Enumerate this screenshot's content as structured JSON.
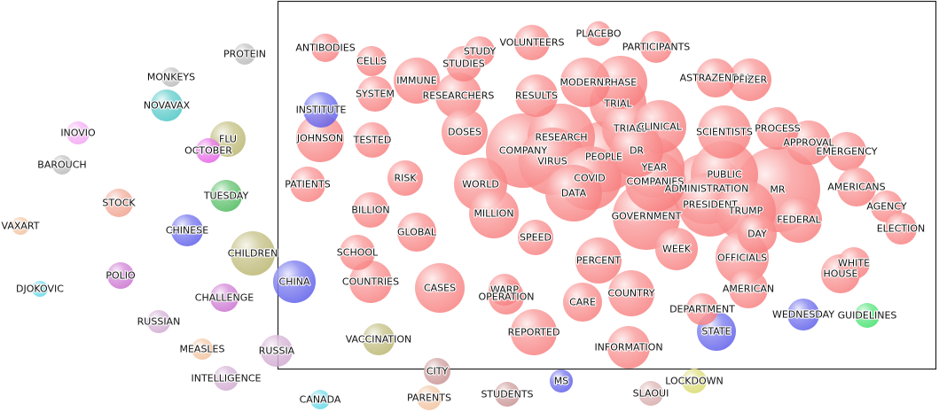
{
  "colors": {
    "red": "#f87f7f",
    "blue": "#5b5bea",
    "teal": "#49c4c4",
    "olive": "#b9b56e",
    "green": "#49b859",
    "bright_green": "#3fe06a",
    "magenta": "#e45fe4",
    "violet": "#c96fd0",
    "pink": "#f3a3f3",
    "gray": "#b8b8b8",
    "salmon": "#f0a08c",
    "peach": "#f2c19b",
    "rose": "#d7a8a8",
    "lilac": "#cfa7cf",
    "yellow": "#d9d96a",
    "brown": "#c89090",
    "cyan": "#5fd8e8",
    "frame": "#222222"
  },
  "nodes": [
    {
      "label": "PLACEBO",
      "color": "red",
      "radius": 14
    },
    {
      "label": "PARTICIPANTS",
      "color": "red",
      "radius": 18
    },
    {
      "label": "VOLUNTEERS",
      "color": "red",
      "radius": 20
    },
    {
      "label": "STUDY",
      "color": "red",
      "radius": 17
    },
    {
      "label": "STUDIES",
      "color": "red",
      "radius": 20
    },
    {
      "label": "ANTIBODIES",
      "color": "red",
      "radius": 16
    },
    {
      "label": "CELLS",
      "color": "red",
      "radius": 17
    },
    {
      "label": "IMMUNE",
      "color": "red",
      "radius": 26
    },
    {
      "label": "RESEARCHERS",
      "color": "red",
      "radius": 26
    },
    {
      "label": "SYSTEM",
      "color": "red",
      "radius": 20
    },
    {
      "label": "RESULTS",
      "color": "red",
      "radius": 24
    },
    {
      "label": "MODERNA",
      "color": "red",
      "radius": 28
    },
    {
      "label": "PHASE",
      "color": "red",
      "radius": 30
    },
    {
      "label": "ASTRAZENECA",
      "color": "red",
      "radius": 22
    },
    {
      "label": "PFIZER",
      "color": "red",
      "radius": 24
    },
    {
      "label": "INSTITUTE",
      "color": "blue",
      "radius": 20
    },
    {
      "label": "TRIAL",
      "color": "red",
      "radius": 32
    },
    {
      "label": "JOHNSON",
      "color": "red",
      "radius": 27
    },
    {
      "label": "TESTED",
      "color": "red",
      "radius": 20
    },
    {
      "label": "DOSES",
      "color": "red",
      "radius": 26
    },
    {
      "label": "TRIALS",
      "color": "red",
      "radius": 32
    },
    {
      "label": "CLINICAL",
      "color": "red",
      "radius": 30
    },
    {
      "label": "SCIENTISTS",
      "color": "red",
      "radius": 30
    },
    {
      "label": "PROCESS",
      "color": "red",
      "radius": 24
    },
    {
      "label": "RESEARCH",
      "color": "red",
      "radius": 38
    },
    {
      "label": "COMPANY",
      "color": "red",
      "radius": 42
    },
    {
      "label": "VIRUS",
      "color": "red",
      "radius": 38
    },
    {
      "label": "PEOPLE",
      "color": "red",
      "radius": 40
    },
    {
      "label": "DR",
      "color": "red",
      "radius": 30
    },
    {
      "label": "APPROVAL",
      "color": "red",
      "radius": 25
    },
    {
      "label": "EMERGENCY",
      "color": "red",
      "radius": 22
    },
    {
      "label": "YEAR",
      "color": "red",
      "radius": 34
    },
    {
      "label": "PUBLIC",
      "color": "red",
      "radius": 38
    },
    {
      "label": "PATIENTS",
      "color": "red",
      "radius": 20
    },
    {
      "label": "RISK",
      "color": "red",
      "radius": 20
    },
    {
      "label": "WORLD",
      "color": "red",
      "radius": 30
    },
    {
      "label": "COVID",
      "color": "red",
      "radius": 36
    },
    {
      "label": "COMPANIES",
      "color": "red",
      "radius": 34
    },
    {
      "label": "ADMINISTRATION",
      "color": "red",
      "radius": 40
    },
    {
      "label": "MR",
      "color": "red",
      "radius": 48
    },
    {
      "label": "AMERICANS",
      "color": "red",
      "radius": 22
    },
    {
      "label": "DATA",
      "color": "red",
      "radius": 32
    },
    {
      "label": "BILLION",
      "color": "red",
      "radius": 20
    },
    {
      "label": "PRESIDENT",
      "color": "red",
      "radius": 36
    },
    {
      "label": "TRUMP",
      "color": "red",
      "radius": 34
    },
    {
      "label": "AGENCY",
      "color": "red",
      "radius": 18
    },
    {
      "label": "MILLION",
      "color": "red",
      "radius": 28
    },
    {
      "label": "GOVERNMENT",
      "color": "red",
      "radius": 38
    },
    {
      "label": "FEDERAL",
      "color": "red",
      "radius": 26
    },
    {
      "label": "ELECTION",
      "color": "red",
      "radius": 18
    },
    {
      "label": "GLOBAL",
      "color": "red",
      "radius": 22
    },
    {
      "label": "DAY",
      "color": "red",
      "radius": 22
    },
    {
      "label": "SPEED",
      "color": "red",
      "radius": 20
    },
    {
      "label": "WEEK",
      "color": "red",
      "radius": 24
    },
    {
      "label": "PERCENT",
      "color": "red",
      "radius": 26
    },
    {
      "label": "OFFICIALS",
      "color": "red",
      "radius": 30
    },
    {
      "label": "WHITE",
      "color": "red",
      "radius": 18
    },
    {
      "label": "HOUSE",
      "color": "red",
      "radius": 22
    },
    {
      "label": "SCHOOL",
      "color": "red",
      "radius": 20
    },
    {
      "label": "COUNTRIES",
      "color": "red",
      "radius": 24
    },
    {
      "label": "CASES",
      "color": "red",
      "radius": 28
    },
    {
      "label": "WARP",
      "color": "red",
      "radius": 18
    },
    {
      "label": "OPERATION",
      "color": "red",
      "radius": 20
    },
    {
      "label": "CARE",
      "color": "red",
      "radius": 22
    },
    {
      "label": "COUNTRY",
      "color": "red",
      "radius": 26
    },
    {
      "label": "AMERICAN",
      "color": "red",
      "radius": 22
    },
    {
      "label": "DEPARTMENT",
      "color": "red",
      "radius": 18
    },
    {
      "label": "REPORTED",
      "color": "red",
      "radius": 26
    },
    {
      "label": "INFORMATION",
      "color": "red",
      "radius": 24
    },
    {
      "label": "STATE",
      "color": "blue",
      "radius": 22
    },
    {
      "label": "WEDNESDAY",
      "color": "blue",
      "radius": 18
    },
    {
      "label": "GUIDELINES",
      "color": "bright_green",
      "radius": 14
    },
    {
      "label": "CHINA",
      "color": "blue",
      "radius": 24
    },
    {
      "label": "VACCINATION",
      "color": "olive",
      "radius": 18
    },
    {
      "label": "PROTEIN",
      "color": "gray",
      "radius": 12
    },
    {
      "label": "MONKEYS",
      "color": "gray",
      "radius": 11
    },
    {
      "label": "NOVAVAX",
      "color": "teal",
      "radius": 18
    },
    {
      "label": "FLU",
      "color": "olive",
      "radius": 20
    },
    {
      "label": "INOVIO",
      "color": "pink",
      "radius": 13
    },
    {
      "label": "OCTOBER",
      "color": "magenta",
      "radius": 14
    },
    {
      "label": "BAROUCH",
      "color": "gray",
      "radius": 11
    },
    {
      "label": "TUESDAY",
      "color": "green",
      "radius": 18
    },
    {
      "label": "STOCK",
      "color": "salmon",
      "radius": 16
    },
    {
      "label": "VAXART",
      "color": "peach",
      "radius": 10
    },
    {
      "label": "CHINESE",
      "color": "blue",
      "radius": 18
    },
    {
      "label": "CHILDREN",
      "color": "olive",
      "radius": 25
    },
    {
      "label": "POLIO",
      "color": "violet",
      "radius": 15
    },
    {
      "label": "DJOKOVIC",
      "color": "cyan",
      "radius": 9
    },
    {
      "label": "CHALLENGE",
      "color": "violet",
      "radius": 16
    },
    {
      "label": "RUSSIAN",
      "color": "lilac",
      "radius": 13
    },
    {
      "label": "MEASLES",
      "color": "peach",
      "radius": 12
    },
    {
      "label": "RUSSIA",
      "color": "lilac",
      "radius": 18
    },
    {
      "label": "INTELLIGENCE",
      "color": "lilac",
      "radius": 14
    },
    {
      "label": "CITY",
      "color": "brown",
      "radius": 15
    },
    {
      "label": "PARENTS",
      "color": "peach",
      "radius": 14
    },
    {
      "label": "STUDENTS",
      "color": "brown",
      "radius": 14
    },
    {
      "label": "MS",
      "color": "blue",
      "radius": 13
    },
    {
      "label": "LOCKDOWN",
      "color": "yellow",
      "radius": 14
    },
    {
      "label": "SLAOUI",
      "color": "rose",
      "radius": 14
    },
    {
      "label": "CANADA",
      "color": "cyan",
      "radius": 11
    }
  ]
}
